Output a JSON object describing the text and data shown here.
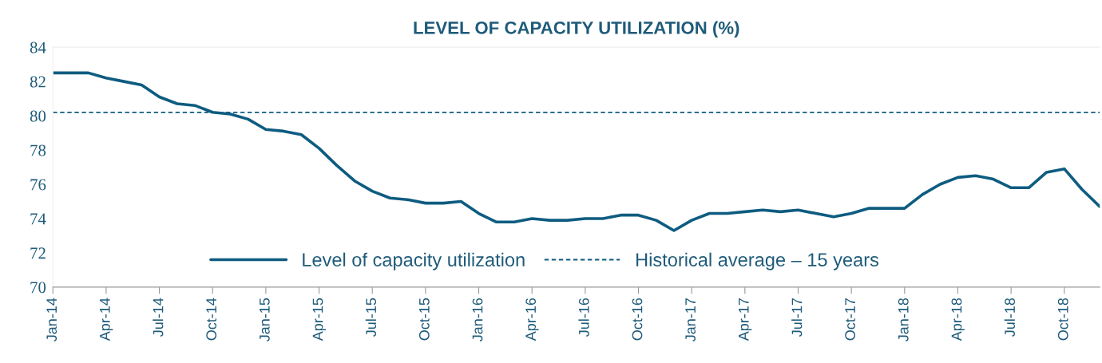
{
  "chart_data": {
    "type": "line",
    "title": "LEVEL OF CAPACITY UTILIZATION (%)",
    "categories": [
      "Jan-14",
      null,
      null,
      "Apr-14",
      null,
      null,
      "Jul-14",
      null,
      null,
      "Oct-14",
      null,
      null,
      "Jan-15",
      null,
      null,
      "Apr-15",
      null,
      null,
      "Jul-15",
      null,
      null,
      "Oct-15",
      null,
      null,
      "Jan-16",
      null,
      null,
      "Apr-16",
      null,
      null,
      "Jul-16",
      null,
      null,
      "Oct-16",
      null,
      null,
      "Jan-17",
      null,
      null,
      "Apr-17",
      null,
      null,
      "Jul-17",
      null,
      null,
      "Oct-17",
      null,
      null,
      "Jan-18",
      null,
      null,
      "Apr-18",
      null,
      null,
      "Jul-18",
      null,
      null,
      "Oct-18",
      null,
      null
    ],
    "series": [
      {
        "name": "Level of capacity utilization",
        "color": "#0e5c80",
        "values": [
          82.5,
          82.5,
          82.5,
          82.2,
          82.0,
          81.8,
          81.1,
          80.7,
          80.6,
          80.2,
          80.1,
          79.8,
          79.2,
          79.1,
          78.9,
          78.1,
          77.1,
          76.2,
          75.6,
          75.2,
          75.1,
          74.9,
          74.9,
          75.0,
          74.3,
          73.8,
          73.8,
          74.0,
          73.9,
          73.9,
          74.0,
          74.0,
          74.2,
          74.2,
          73.9,
          73.3,
          73.9,
          74.3,
          74.3,
          74.4,
          74.5,
          74.4,
          74.5,
          74.3,
          74.1,
          74.3,
          74.6,
          74.6,
          74.6,
          75.4,
          76.0,
          76.4,
          76.5,
          76.3,
          75.8,
          75.8,
          76.7,
          76.9,
          75.7,
          74.7
        ]
      }
    ],
    "ref_lines": [
      {
        "axis": "y",
        "value": 80.2,
        "label": "Historical average – 15 years",
        "color": "#0e5c80",
        "line_style": "dashed"
      }
    ],
    "ylim": [
      70,
      84
    ],
    "yticks": [
      70,
      72,
      74,
      76,
      78,
      80,
      82,
      84
    ],
    "grid": false,
    "legend": "bottom",
    "marker": "none",
    "line_style": "solid"
  }
}
